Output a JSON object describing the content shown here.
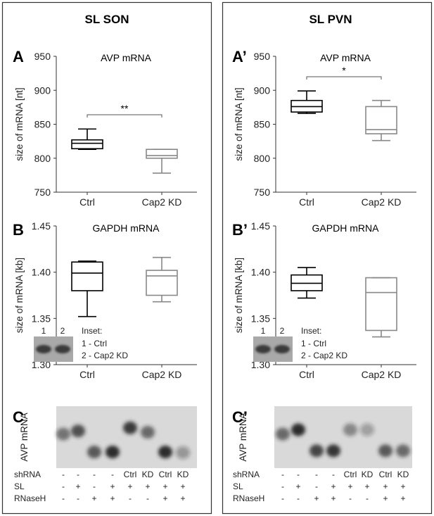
{
  "columns": [
    {
      "title": "SL SON"
    },
    {
      "title": "SL PVN"
    }
  ],
  "chart_data": [
    {
      "panel": "A",
      "type": "box",
      "title": "AVP mRNA",
      "ylabel": "size of mRNA [nt]",
      "ylim": [
        750,
        950
      ],
      "yticks": [
        "750",
        "800",
        "850",
        "900",
        "950"
      ],
      "categories": [
        "Ctrl",
        "Cap2 KD"
      ],
      "boxes": [
        {
          "min": 813,
          "q1": 814,
          "median": 822,
          "q3": 827,
          "max": 843,
          "color": "#000000"
        },
        {
          "min": 778,
          "q1": 800,
          "median": 804,
          "q3": 813,
          "max": 813,
          "color": "#888888"
        }
      ],
      "significance": "**"
    },
    {
      "panel": "B",
      "type": "box",
      "title": "GAPDH mRNA",
      "ylabel": "size of mRNA [kb]",
      "ylim": [
        1.3,
        1.45
      ],
      "yticks": [
        "1.30",
        "1.35",
        "1.40",
        "1.45"
      ],
      "categories": [
        "Ctrl",
        "Cap2 KD"
      ],
      "boxes": [
        {
          "min": 1.352,
          "q1": 1.38,
          "median": 1.399,
          "q3": 1.411,
          "max": 1.412,
          "color": "#000000"
        },
        {
          "min": 1.368,
          "q1": 1.375,
          "median": 1.396,
          "q3": 1.402,
          "max": 1.416,
          "color": "#888888"
        }
      ],
      "inset": {
        "lanes": [
          "1",
          "2"
        ],
        "title": "Inset:",
        "legend": [
          "1 - Ctrl",
          "2 - Cap2 KD"
        ]
      }
    },
    {
      "panel": "A’",
      "type": "box",
      "title": "AVP mRNA",
      "ylabel": "size of mRNA [nt]",
      "ylim": [
        750,
        950
      ],
      "yticks": [
        "750",
        "800",
        "850",
        "900",
        "950"
      ],
      "categories": [
        "Ctrl",
        "Cap2 KD"
      ],
      "boxes": [
        {
          "min": 866,
          "q1": 868,
          "median": 876,
          "q3": 885,
          "max": 899,
          "color": "#000000"
        },
        {
          "min": 826,
          "q1": 836,
          "median": 842,
          "q3": 876,
          "max": 885,
          "color": "#888888"
        }
      ],
      "significance": "*"
    },
    {
      "panel": "B’",
      "type": "box",
      "title": "GAPDH mRNA",
      "ylabel": "size of mRNA [kb]",
      "ylim": [
        1.3,
        1.45
      ],
      "yticks": [
        "1.30",
        "1.35",
        "1.40",
        "1.45"
      ],
      "categories": [
        "Ctrl",
        "Cap2 KD"
      ],
      "boxes": [
        {
          "min": 1.372,
          "q1": 1.38,
          "median": 1.388,
          "q3": 1.397,
          "max": 1.405,
          "color": "#000000"
        },
        {
          "min": 1.33,
          "q1": 1.337,
          "median": 1.378,
          "q3": 1.394,
          "max": 1.394,
          "color": "#888888"
        }
      ],
      "inset": {
        "lanes": [
          "1",
          "2"
        ],
        "title": "Inset:",
        "legend": [
          "1 - Ctrl",
          "2 - Cap2 KD"
        ]
      }
    }
  ],
  "gels": [
    {
      "panel": "C",
      "ylabel": "AVP mRNA",
      "rows": [
        {
          "label": "shRNA",
          "values": [
            "-",
            "-",
            "-",
            "-",
            "Ctrl",
            "KD",
            "Ctrl",
            "KD"
          ]
        },
        {
          "label": "SL",
          "values": [
            "-",
            "+",
            "-",
            "+",
            "+",
            "+",
            "+",
            "+"
          ]
        },
        {
          "label": "RNaseH",
          "values": [
            "-",
            "-",
            "+",
            "+",
            "-",
            "-",
            "+",
            "+"
          ]
        }
      ]
    },
    {
      "panel": "C’",
      "ylabel": "AVP mRNA",
      "rows": [
        {
          "label": "shRNA",
          "values": [
            "-",
            "-",
            "-",
            "-",
            "Ctrl",
            "KD",
            "Ctrl",
            "KD"
          ]
        },
        {
          "label": "SL",
          "values": [
            "-",
            "+",
            "-",
            "+",
            "+",
            "+",
            "+",
            "+"
          ]
        },
        {
          "label": "RNaseH",
          "values": [
            "-",
            "-",
            "+",
            "+",
            "-",
            "-",
            "+",
            "+"
          ]
        }
      ]
    }
  ]
}
